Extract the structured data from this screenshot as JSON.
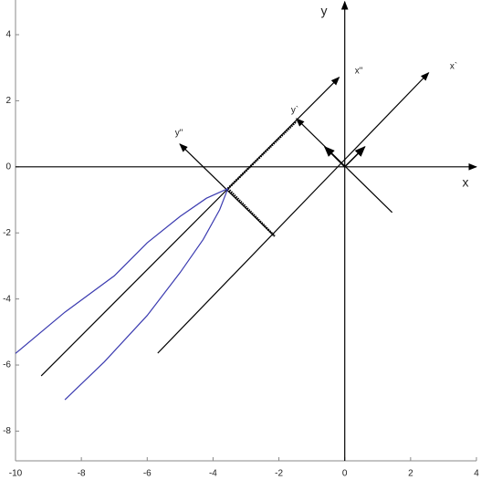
{
  "chart_data": {
    "type": "line",
    "xlim": [
      -10,
      4
    ],
    "ylim": [
      -8.9,
      5.05
    ],
    "xticks": [
      -10,
      -8,
      -6,
      -4,
      -2,
      0,
      2,
      4
    ],
    "yticks": [
      -8,
      -6,
      -4,
      -2,
      0,
      2,
      4
    ],
    "series": [
      {
        "color": "#000000",
        "arrow": true,
        "x": [
          -10,
          4
        ],
        "values": [
          0,
          0
        ]
      },
      {
        "color": "#000000",
        "arrow": true,
        "x": [
          0,
          0
        ],
        "values": [
          -8.9,
          5
        ]
      },
      {
        "color": "#000000",
        "arrow": true,
        "x": [
          -5.68,
          2.55
        ],
        "values": [
          -5.64,
          2.85
        ]
      },
      {
        "color": "#000000",
        "arrow": true,
        "x": [
          1.44,
          -1.47
        ],
        "values": [
          -1.38,
          1.46
        ]
      },
      {
        "color": "#000000",
        "arrow": true,
        "x": [
          -9.22,
          -0.17
        ],
        "values": [
          -6.33,
          2.71
        ]
      },
      {
        "color": "#000000",
        "arrow": true,
        "x": [
          -2.13,
          -5.01
        ],
        "values": [
          -2.1,
          0.69
        ]
      },
      {
        "color": "#000000",
        "style": "dotted",
        "x": [
          -3.55,
          -1.47
        ],
        "values": [
          -0.66,
          1.38
        ]
      },
      {
        "color": "#000000",
        "style": "dotted",
        "x": [
          -3.55,
          -2.13
        ],
        "values": [
          -0.66,
          -2.1
        ]
      },
      {
        "color": "#3b3bb0",
        "x": [
          -3.55,
          -4.2,
          -5,
          -6,
          -7,
          -8.5,
          -10
        ],
        "values": [
          -0.66,
          -0.95,
          -1.5,
          -2.3,
          -3.3,
          -4.4,
          -5.65
        ]
      },
      {
        "color": "#3b3bb0",
        "x": [
          -3.55,
          -3.8,
          -4.3,
          -5,
          -6,
          -7.3,
          -8.5
        ],
        "values": [
          -0.66,
          -1.3,
          -2.2,
          -3.2,
          -4.5,
          -5.9,
          -7.05
        ]
      }
    ],
    "annotations": [
      "x",
      "y",
      "x`",
      "y`",
      "x\"",
      "y\""
    ]
  }
}
